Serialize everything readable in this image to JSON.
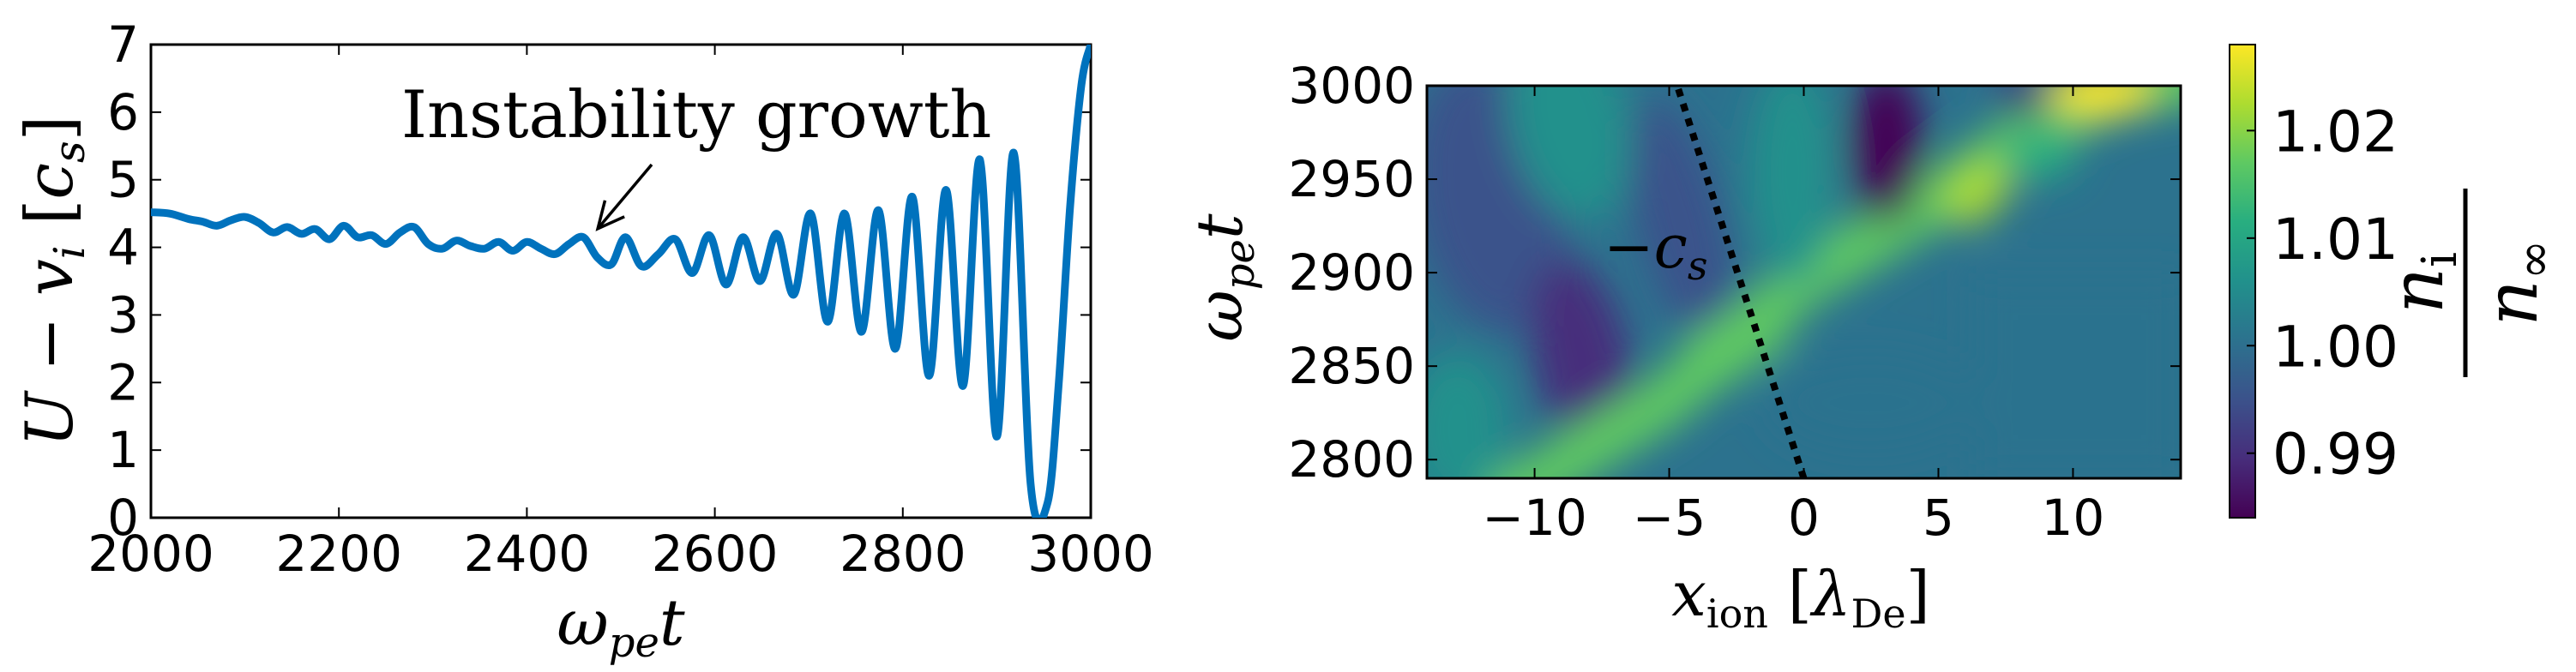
{
  "chart_data": [
    {
      "type": "line",
      "xlabel": "ω_pe t",
      "ylabel": "U − v_i [c_s]",
      "xlim": [
        2000,
        3000
      ],
      "ylim": [
        0,
        7
      ],
      "xticks": [
        "2000",
        "2200",
        "2400",
        "2600",
        "2800",
        "3000"
      ],
      "yticks": [
        "0",
        "1",
        "2",
        "3",
        "4",
        "5",
        "6",
        "7"
      ],
      "annotation": "Instability growth",
      "annotation_point": {
        "x": 2470,
        "y": 4.15
      },
      "line_color": "#0072bd",
      "series": [
        {
          "x": [
            2000,
            2020,
            2040,
            2055,
            2070,
            2085,
            2100,
            2115,
            2130,
            2145,
            2160,
            2175,
            2190,
            2205,
            2220,
            2235,
            2250,
            2265,
            2280,
            2295,
            2310,
            2325,
            2340,
            2355,
            2370,
            2385,
            2400,
            2415,
            2430,
            2445,
            2460,
            2475,
            2490,
            2505,
            2522,
            2540,
            2558,
            2576,
            2594,
            2612,
            2630,
            2648,
            2666,
            2684,
            2702,
            2720,
            2738,
            2756,
            2774,
            2792,
            2810,
            2828,
            2846,
            2864,
            2882,
            2900,
            2918,
            2936,
            2954,
            2966,
            2978,
            2990,
            3000
          ],
          "y": [
            4.52,
            4.5,
            4.42,
            4.38,
            4.32,
            4.4,
            4.45,
            4.36,
            4.22,
            4.3,
            4.2,
            4.27,
            4.12,
            4.32,
            4.15,
            4.18,
            4.05,
            4.22,
            4.3,
            4.05,
            3.98,
            4.1,
            4.02,
            3.98,
            4.08,
            3.95,
            4.08,
            3.98,
            3.9,
            4.05,
            4.15,
            3.85,
            3.75,
            4.15,
            3.72,
            3.9,
            4.12,
            3.62,
            4.18,
            3.45,
            4.15,
            3.5,
            4.2,
            3.3,
            4.5,
            2.9,
            4.5,
            2.75,
            4.55,
            2.5,
            4.75,
            2.1,
            4.85,
            1.95,
            5.3,
            1.2,
            5.4,
            0.5,
            0.22,
            2.0,
            4.6,
            6.4,
            7.0
          ]
        }
      ]
    },
    {
      "type": "heatmap",
      "xlabel": "x_ion [λ_De]",
      "ylabel": "ω_pe t",
      "xlim": [
        -14,
        14
      ],
      "ylim": [
        2790,
        3000
      ],
      "xticks": [
        "−10",
        "−5",
        "0",
        "5",
        "10"
      ],
      "yticks": [
        "2800",
        "2850",
        "2900",
        "2950",
        "3000"
      ],
      "colormap": "viridis",
      "colorbar": {
        "label": "n_i / n_∞",
        "range": [
          0.984,
          1.028
        ],
        "ticks": [
          "0.99",
          "1.00",
          "1.01",
          "1.02"
        ]
      },
      "overlay_line": {
        "label": "−c_s",
        "style": "dotted",
        "x": [
          0,
          -4.7
        ],
        "y": [
          2790,
          3000
        ]
      }
    }
  ]
}
